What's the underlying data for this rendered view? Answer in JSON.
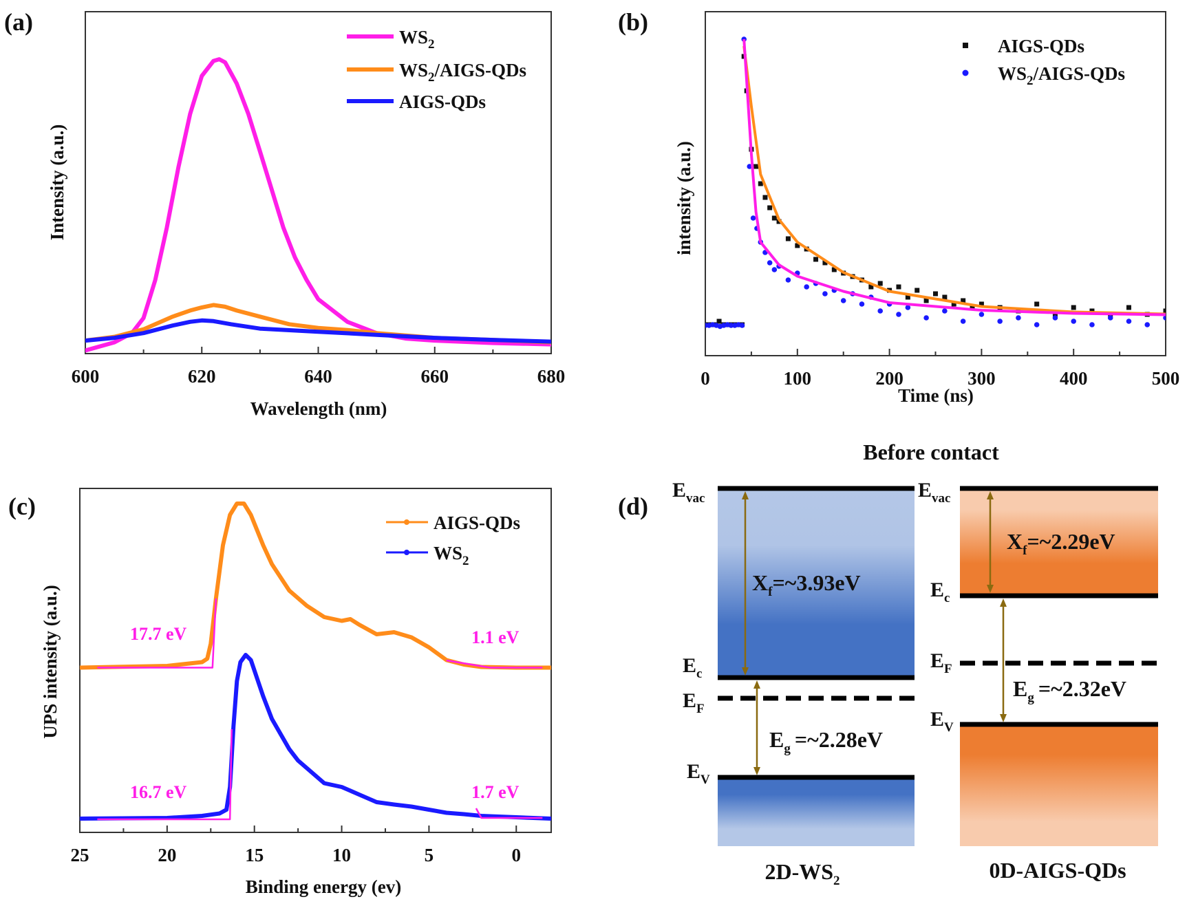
{
  "panel_labels": {
    "a": "(a)",
    "b": "(b)",
    "c": "(c)",
    "d": "(d)"
  },
  "colors": {
    "ws2_pl": "#ff1ee8",
    "ws2_aigs": "#ff8c1a",
    "aigs": "#1a1aff",
    "fit_magenta": "#ff1ee8",
    "fit_orange": "#ff8c1a",
    "arrow": "#8a6a10",
    "ws2_band_dark": "#4472c4",
    "ws2_band_light": "#b4c7e7",
    "qd_band_dark": "#ed7d31",
    "qd_band_light": "#f8cbad"
  },
  "chart_data": [
    {
      "id": "a",
      "type": "line",
      "xlabel": "Wavelength (nm)",
      "ylabel": "Intensity (a.u.)",
      "xlim": [
        600,
        680
      ],
      "ylim": [
        0,
        1
      ],
      "xticks": [
        600,
        620,
        640,
        660,
        680
      ],
      "grid": false,
      "legend_placement": "top-right",
      "series": [
        {
          "name": {
            "main": "WS",
            "sub": "2",
            "rest": ""
          },
          "color": "#ff1ee8",
          "x": [
            600,
            605,
            608,
            610,
            612,
            614,
            616,
            618,
            620,
            622,
            623,
            624,
            626,
            628,
            630,
            632,
            634,
            636,
            638,
            640,
            645,
            650,
            655,
            660,
            670,
            680
          ],
          "y": [
            0.009,
            0.033,
            0.06,
            0.104,
            0.215,
            0.369,
            0.546,
            0.701,
            0.812,
            0.856,
            0.861,
            0.852,
            0.79,
            0.701,
            0.591,
            0.48,
            0.369,
            0.281,
            0.215,
            0.159,
            0.093,
            0.06,
            0.044,
            0.038,
            0.031,
            0.027
          ]
        },
        {
          "name": {
            "main": "WS",
            "sub": "2",
            "rest": "/AIGS-QDs"
          },
          "color": "#ff8c1a",
          "x": [
            600,
            605,
            610,
            615,
            618,
            620,
            622,
            624,
            626,
            630,
            635,
            640,
            645,
            650,
            660,
            670,
            680
          ],
          "y": [
            0.038,
            0.049,
            0.071,
            0.108,
            0.126,
            0.135,
            0.142,
            0.137,
            0.126,
            0.108,
            0.086,
            0.075,
            0.069,
            0.06,
            0.046,
            0.04,
            0.033
          ]
        },
        {
          "name": {
            "main": "AIGS-QDs",
            "sub": "",
            "rest": ""
          },
          "color": "#1a1aff",
          "x": [
            600,
            605,
            610,
            615,
            618,
            620,
            622,
            625,
            630,
            640,
            650,
            660,
            670,
            680
          ],
          "y": [
            0.038,
            0.046,
            0.06,
            0.082,
            0.093,
            0.097,
            0.095,
            0.086,
            0.073,
            0.064,
            0.055,
            0.046,
            0.04,
            0.035
          ]
        }
      ]
    },
    {
      "id": "b",
      "type": "scatter",
      "xlabel": "Time (ns)",
      "ylabel": "intensity (a.u.)",
      "xlim": [
        0,
        500
      ],
      "ylim": [
        0,
        1
      ],
      "xticks": [
        0,
        100,
        200,
        300,
        400,
        500
      ],
      "grid": false,
      "legend_placement": "top-right",
      "series": [
        {
          "name": {
            "main": "AIGS-QDs",
            "sub": "",
            "rest": ""
          },
          "color": "#111111",
          "marker": "square",
          "x": [
            0,
            5,
            10,
            15,
            20,
            25,
            30,
            35,
            40,
            42,
            45,
            50,
            55,
            60,
            65,
            70,
            75,
            80,
            90,
            100,
            110,
            120,
            130,
            140,
            150,
            160,
            170,
            180,
            190,
            200,
            210,
            220,
            230,
            240,
            250,
            260,
            270,
            280,
            290,
            300,
            320,
            340,
            360,
            380,
            400,
            420,
            440,
            460,
            480,
            500
          ],
          "y": [
            0.09,
            0.09,
            0.09,
            0.1,
            0.09,
            0.09,
            0.09,
            0.09,
            0.09,
            0.87,
            0.77,
            0.6,
            0.55,
            0.5,
            0.46,
            0.43,
            0.4,
            0.39,
            0.34,
            0.32,
            0.31,
            0.28,
            0.27,
            0.25,
            0.24,
            0.23,
            0.22,
            0.2,
            0.21,
            0.19,
            0.2,
            0.17,
            0.19,
            0.16,
            0.18,
            0.17,
            0.15,
            0.16,
            0.14,
            0.15,
            0.14,
            0.13,
            0.15,
            0.12,
            0.14,
            0.13,
            0.12,
            0.14,
            0.12,
            0.13
          ]
        },
        {
          "name": {
            "main": "WS",
            "sub": "2",
            "rest": "/AIGS-QDs"
          },
          "color": "#1a1aff",
          "marker": "circle",
          "x": [
            0,
            4,
            8,
            12,
            16,
            20,
            24,
            28,
            32,
            36,
            40,
            42,
            48,
            52,
            56,
            60,
            65,
            70,
            75,
            80,
            90,
            100,
            110,
            120,
            130,
            140,
            150,
            160,
            170,
            180,
            190,
            200,
            210,
            220,
            240,
            260,
            280,
            300,
            320,
            340,
            360,
            380,
            400,
            420,
            440,
            460,
            480,
            500
          ],
          "y": [
            0.088,
            0.088,
            0.09,
            0.088,
            0.085,
            0.088,
            0.09,
            0.088,
            0.088,
            0.09,
            0.088,
            0.92,
            0.55,
            0.4,
            0.37,
            0.33,
            0.3,
            0.27,
            0.25,
            0.26,
            0.22,
            0.24,
            0.2,
            0.21,
            0.18,
            0.19,
            0.16,
            0.18,
            0.15,
            0.17,
            0.13,
            0.15,
            0.12,
            0.14,
            0.11,
            0.13,
            0.1,
            0.12,
            0.1,
            0.11,
            0.09,
            0.11,
            0.1,
            0.09,
            0.11,
            0.1,
            0.09,
            0.11
          ]
        }
      ],
      "fits": [
        {
          "color": "#ff8c1a",
          "x": [
            42,
            50,
            60,
            80,
            100,
            150,
            200,
            300,
            400,
            500
          ],
          "y": [
            0.9,
            0.725,
            0.527,
            0.396,
            0.33,
            0.242,
            0.187,
            0.143,
            0.127,
            0.121
          ]
        },
        {
          "color": "#ff1ee8",
          "x": [
            42,
            50,
            55,
            60,
            80,
            100,
            150,
            200,
            300,
            400,
            500
          ],
          "y": [
            0.92,
            0.587,
            0.418,
            0.33,
            0.264,
            0.231,
            0.187,
            0.154,
            0.132,
            0.123,
            0.119
          ]
        }
      ]
    },
    {
      "id": "c",
      "type": "line",
      "xlabel": "Binding energy (ev)",
      "ylabel": "UPS intensity (a.u.)",
      "xlim": [
        25,
        -2
      ],
      "ylim": [
        0,
        1
      ],
      "xticks": [
        25,
        20,
        15,
        10,
        5,
        0
      ],
      "grid": false,
      "legend_placement": "top-right",
      "series": [
        {
          "name": {
            "main": "AIGS-QDs",
            "sub": "",
            "rest": ""
          },
          "color": "#ff8c1a",
          "x": [
            25,
            20,
            18,
            17.7,
            17.5,
            17.2,
            16.8,
            16.4,
            16,
            15.6,
            15.2,
            14.5,
            14,
            13,
            12,
            11,
            10,
            9.5,
            9,
            8,
            7,
            6,
            5,
            4,
            3,
            2,
            0,
            -2
          ],
          "y": [
            0.479,
            0.484,
            0.495,
            0.505,
            0.549,
            0.681,
            0.835,
            0.923,
            0.956,
            0.956,
            0.923,
            0.835,
            0.78,
            0.703,
            0.659,
            0.626,
            0.615,
            0.62,
            0.604,
            0.576,
            0.582,
            0.567,
            0.538,
            0.501,
            0.488,
            0.481,
            0.479,
            0.479
          ]
        },
        {
          "name": {
            "main": "WS",
            "sub": "2",
            "rest": ""
          },
          "color": "#1a1aff",
          "x": [
            25,
            20,
            18,
            17,
            16.6,
            16.4,
            16.2,
            16,
            15.8,
            15.5,
            15.2,
            14.5,
            14,
            13,
            12.5,
            12,
            11,
            10,
            9,
            8,
            7,
            6,
            5,
            4,
            3,
            2,
            0,
            -2
          ],
          "y": [
            0.04,
            0.042,
            0.048,
            0.055,
            0.066,
            0.132,
            0.308,
            0.44,
            0.495,
            0.516,
            0.501,
            0.396,
            0.33,
            0.242,
            0.209,
            0.187,
            0.143,
            0.132,
            0.11,
            0.088,
            0.081,
            0.075,
            0.066,
            0.057,
            0.053,
            0.048,
            0.044,
            0.04
          ]
        }
      ],
      "fits": [
        {
          "color": "#ff1ee8",
          "x": [
            24,
            17.4,
            17.2
          ],
          "y": [
            0.479,
            0.479,
            0.68
          ]
        },
        {
          "color": "#ff1ee8",
          "x": [
            4,
            1.5,
            -1.5
          ],
          "y": [
            0.5,
            0.479,
            0.479
          ]
        },
        {
          "color": "#ff1ee8",
          "x": [
            24,
            16.4,
            16.3
          ],
          "y": [
            0.038,
            0.038,
            0.3
          ]
        },
        {
          "color": "#ff1ee8",
          "x": [
            2.3,
            2.0,
            -1.5
          ],
          "y": [
            0.07,
            0.042,
            0.042
          ]
        }
      ],
      "annotations": [
        {
          "text": "17.7 eV",
          "x": 20.5,
          "y": 0.56
        },
        {
          "text": "1.1 eV",
          "x": 1.2,
          "y": 0.55
        },
        {
          "text": "16.7 eV",
          "x": 20.5,
          "y": 0.1
        },
        {
          "text": "1.7 eV",
          "x": 1.2,
          "y": 0.1
        }
      ]
    }
  ],
  "diagram": {
    "title": "Before contact",
    "left": {
      "name": {
        "main": "2D-WS",
        "sub": "2"
      },
      "levels": {
        "evac": {
          "main": "E",
          "sub": "vac"
        },
        "ec": {
          "main": "E",
          "sub": "c"
        },
        "ef": {
          "main": "E",
          "sub": "F"
        },
        "ev": {
          "main": "E",
          "sub": "V"
        }
      },
      "xf": {
        "main": "X",
        "sub": "f",
        "rest": "=~3.93eV"
      },
      "eg": {
        "main": "E",
        "sub": "g",
        "rest": "=~2.28eV"
      }
    },
    "right": {
      "name": {
        "main": "0D-AIGS-QDs",
        "sub": ""
      },
      "levels": {
        "evac": {
          "main": "E",
          "sub": "vac"
        },
        "ec": {
          "main": "E",
          "sub": "c"
        },
        "ef": {
          "main": "E",
          "sub": "F"
        },
        "ev": {
          "main": "E",
          "sub": "V"
        }
      },
      "xf": {
        "main": "X",
        "sub": "f",
        "rest": "=~2.29eV"
      },
      "eg": {
        "main": "E",
        "sub": "g",
        "rest": "=~2.32eV"
      }
    }
  }
}
